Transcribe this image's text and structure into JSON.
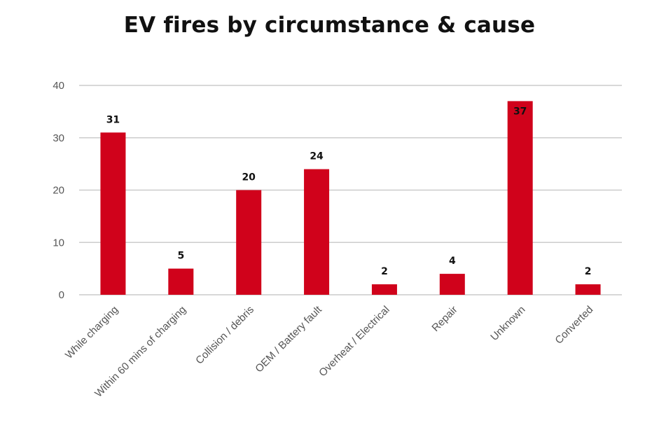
{
  "chart_data": {
    "type": "bar",
    "title": "EV fires by circumstance & cause",
    "categories": [
      "While charging",
      "Within 60 mins of charging",
      "Collision / debris",
      "OEM / Battery fault",
      "Overheat / Electrical",
      "Repair",
      "Unknown",
      "Converted"
    ],
    "values": [
      31,
      5,
      20,
      24,
      2,
      4,
      37,
      2
    ],
    "data_labels": [
      "31",
      "5",
      "20",
      "24",
      "2",
      "4",
      "37",
      "2"
    ],
    "xlabel": "",
    "ylabel": "",
    "ylim": [
      0,
      40
    ],
    "yticks": [
      0,
      10,
      20,
      30,
      40
    ],
    "ytick_labels": [
      "0",
      "10",
      "20",
      "30",
      "40"
    ],
    "grid": true,
    "legend": "none",
    "bar_color": "#d0021b",
    "grid_color": "#cccccc"
  }
}
